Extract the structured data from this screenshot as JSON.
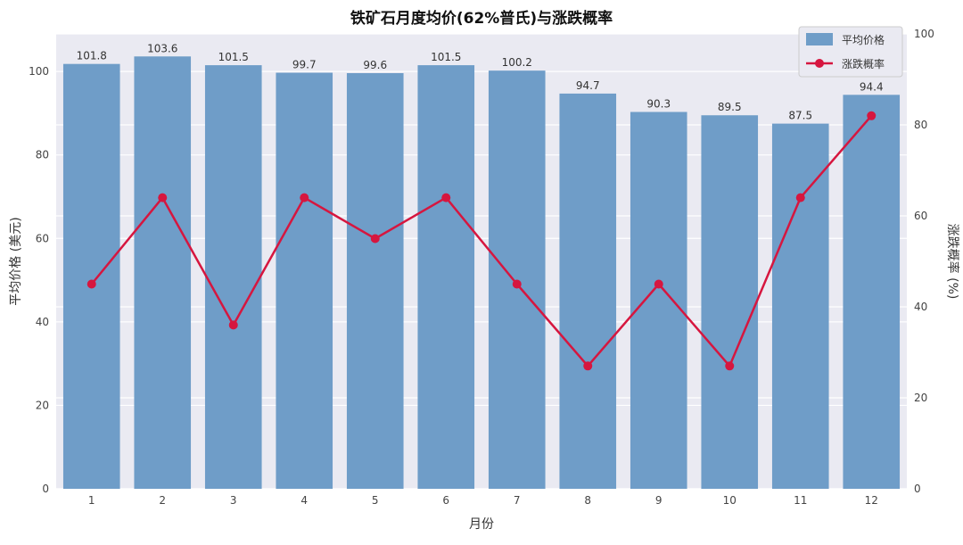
{
  "chart_data": {
    "type": "bar",
    "title": "铁矿石月度均价(62%普氏)与涨跌概率",
    "xlabel": "月份",
    "ylabel": "平均价格 (美元)",
    "y2label": "涨跌概率 (%)",
    "categories": [
      "1",
      "2",
      "3",
      "4",
      "5",
      "6",
      "7",
      "8",
      "9",
      "10",
      "11",
      "12"
    ],
    "series": [
      {
        "name": "平均价格",
        "type": "bar",
        "axis": "left",
        "color": "#6f9dc8",
        "values": [
          101.8,
          103.6,
          101.5,
          99.7,
          99.6,
          101.5,
          100.2,
          94.7,
          90.3,
          89.5,
          87.5,
          94.4
        ],
        "labels": [
          "101.8",
          "103.6",
          "101.5",
          "99.7",
          "99.6",
          "101.5",
          "100.2",
          "94.7",
          "90.3",
          "89.5",
          "87.5",
          "94.4"
        ]
      },
      {
        "name": "涨跌概率",
        "type": "line",
        "axis": "right",
        "color": "#d6163f",
        "values": [
          45,
          64,
          36,
          64,
          55,
          64,
          45,
          27,
          45,
          27,
          64,
          82
        ]
      }
    ],
    "ylim": [
      0,
      109
    ],
    "y_ticks": [
      "0",
      "20",
      "40",
      "60",
      "80",
      "100"
    ],
    "y2lim": [
      0,
      100
    ],
    "y2_ticks": [
      "0",
      "20",
      "40",
      "60",
      "80",
      "100"
    ],
    "grid": true,
    "legend_position": "top-right",
    "background_color": "#eaeaf2"
  }
}
